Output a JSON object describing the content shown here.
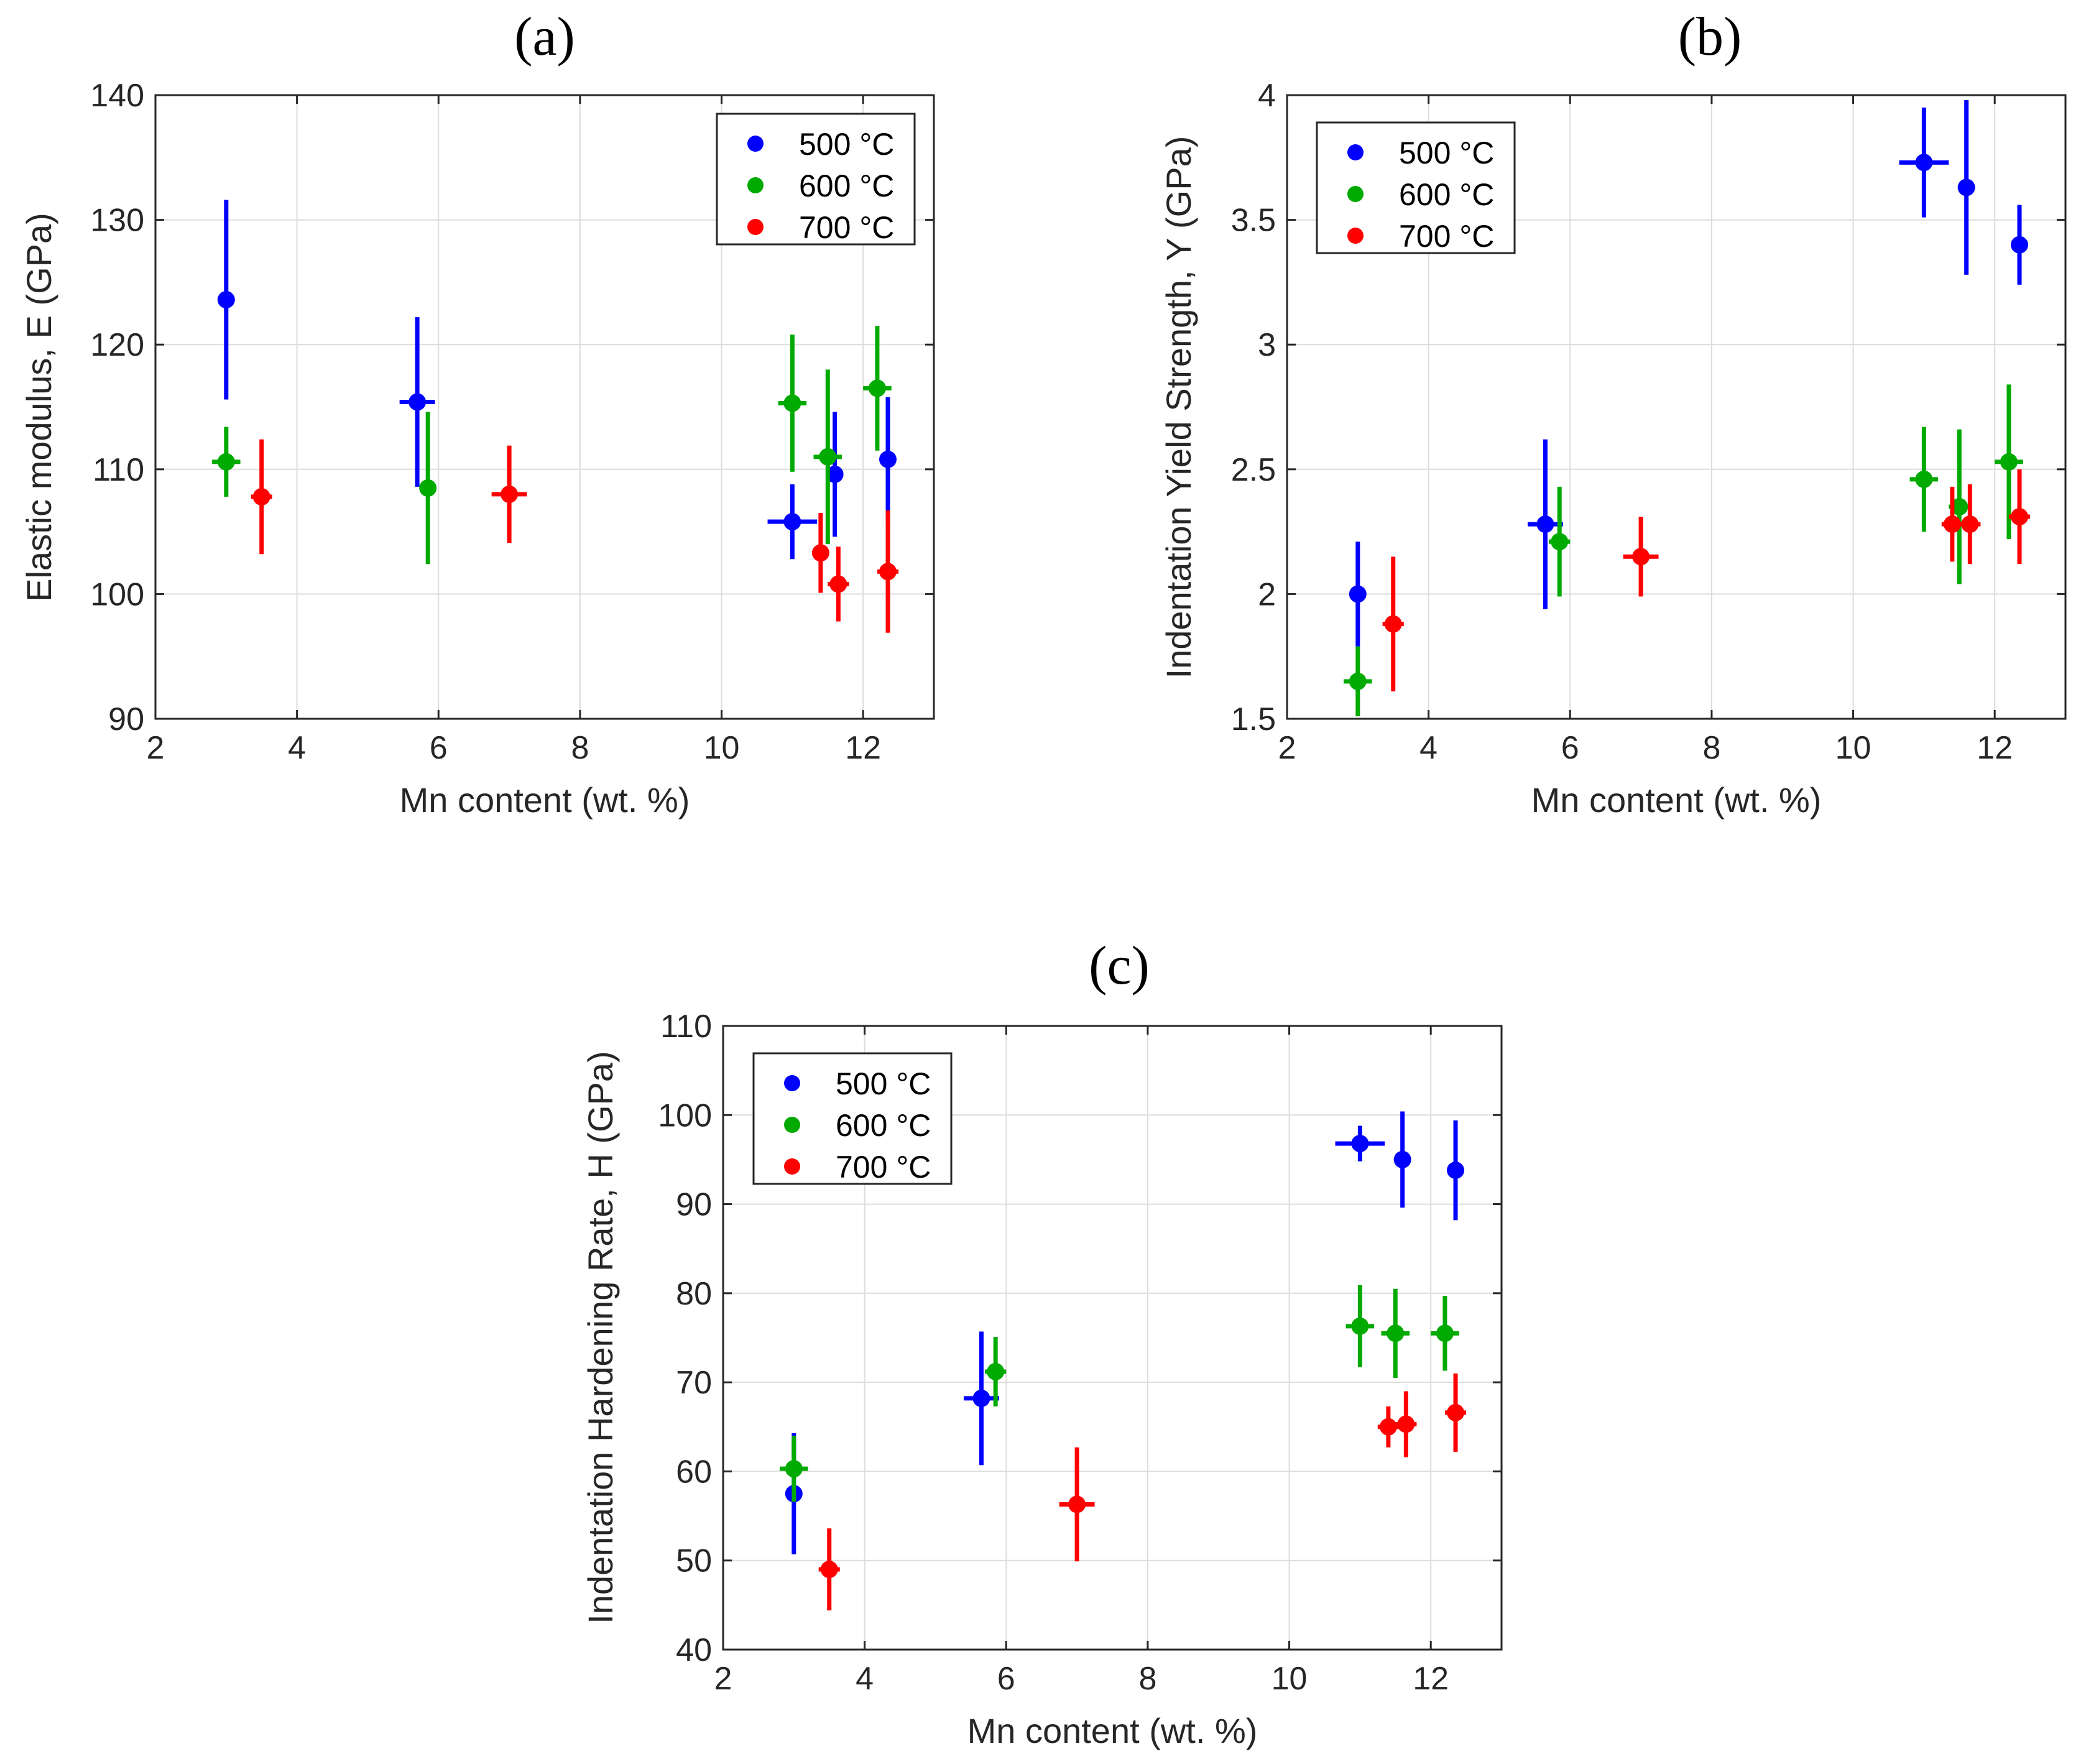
{
  "chart_data": [
    {
      "type": "scatter",
      "panel_label": "(a)",
      "xlabel": "Mn content (wt. %)",
      "ylabel": "Elastic modulus, E (GPa)",
      "xlim": [
        2,
        13
      ],
      "ylim": [
        90,
        140
      ],
      "xticks": [
        2,
        4,
        6,
        8,
        10,
        12
      ],
      "yticks": [
        90,
        100,
        110,
        120,
        130,
        140
      ],
      "grid": true,
      "legend_position": "top-right",
      "series": [
        {
          "name": "500 °C",
          "color": "#0000ff",
          "points": [
            {
              "x": 3.0,
              "y": 123.6,
              "xerr": 0.0,
              "yerr": 8.0
            },
            {
              "x": 5.7,
              "y": 115.4,
              "xerr": 0.25,
              "yerr": 6.8
            },
            {
              "x": 11.0,
              "y": 105.8,
              "xerr": 0.35,
              "yerr": 3.0
            },
            {
              "x": 11.6,
              "y": 109.6,
              "xerr": 0.0,
              "yerr": 5.0
            },
            {
              "x": 12.35,
              "y": 110.8,
              "xerr": 0.0,
              "yerr": 5.0
            }
          ]
        },
        {
          "name": "600 °C",
          "color": "#00aa00",
          "points": [
            {
              "x": 3.0,
              "y": 110.6,
              "xerr": 0.2,
              "yerr": 2.8
            },
            {
              "x": 5.85,
              "y": 108.5,
              "xerr": 0.12,
              "yerr": 6.1
            },
            {
              "x": 11.0,
              "y": 115.3,
              "xerr": 0.2,
              "yerr": 5.5
            },
            {
              "x": 11.5,
              "y": 111.0,
              "xerr": 0.2,
              "yerr": 7.0
            },
            {
              "x": 12.2,
              "y": 116.5,
              "xerr": 0.2,
              "yerr": 5.0
            }
          ]
        },
        {
          "name": "700 °C",
          "color": "#ff0000",
          "points": [
            {
              "x": 3.5,
              "y": 107.8,
              "xerr": 0.15,
              "yerr": 4.6
            },
            {
              "x": 7.0,
              "y": 108.0,
              "xerr": 0.25,
              "yerr": 3.9
            },
            {
              "x": 11.4,
              "y": 103.3,
              "xerr": 0.12,
              "yerr": 3.2
            },
            {
              "x": 11.65,
              "y": 100.8,
              "xerr": 0.15,
              "yerr": 3.0
            },
            {
              "x": 12.35,
              "y": 101.8,
              "xerr": 0.15,
              "yerr": 4.9
            }
          ]
        }
      ]
    },
    {
      "type": "scatter",
      "panel_label": "(b)",
      "xlabel": "Mn content (wt. %)",
      "ylabel": "Indentation Yield Strength, Y (GPa)",
      "xlim": [
        2,
        13
      ],
      "ylim": [
        1.5,
        4
      ],
      "xticks": [
        2,
        4,
        6,
        8,
        10,
        12
      ],
      "yticks": [
        1.5,
        2,
        2.5,
        3,
        3.5,
        4
      ],
      "grid": true,
      "legend_position": "top-left",
      "series": [
        {
          "name": "500 °C",
          "color": "#0000ff",
          "points": [
            {
              "x": 3.0,
              "y": 2.0,
              "xerr": 0.0,
              "yerr": 0.21
            },
            {
              "x": 5.65,
              "y": 2.28,
              "xerr": 0.25,
              "yerr": 0.34
            },
            {
              "x": 11.0,
              "y": 3.73,
              "xerr": 0.35,
              "yerr": 0.22
            },
            {
              "x": 11.6,
              "y": 3.63,
              "xerr": 0.0,
              "yerr": 0.35
            },
            {
              "x": 12.35,
              "y": 3.4,
              "xerr": 0.0,
              "yerr": 0.16
            }
          ]
        },
        {
          "name": "600 °C",
          "color": "#00aa00",
          "points": [
            {
              "x": 3.0,
              "y": 1.65,
              "xerr": 0.2,
              "yerr": 0.14
            },
            {
              "x": 5.85,
              "y": 2.21,
              "xerr": 0.15,
              "yerr": 0.22
            },
            {
              "x": 11.0,
              "y": 2.46,
              "xerr": 0.2,
              "yerr": 0.21
            },
            {
              "x": 11.5,
              "y": 2.35,
              "xerr": 0.15,
              "yerr": 0.31
            },
            {
              "x": 12.2,
              "y": 2.53,
              "xerr": 0.2,
              "yerr": 0.31
            }
          ]
        },
        {
          "name": "700 °C",
          "color": "#ff0000",
          "points": [
            {
              "x": 3.5,
              "y": 1.88,
              "xerr": 0.15,
              "yerr": 0.27
            },
            {
              "x": 7.0,
              "y": 2.15,
              "xerr": 0.25,
              "yerr": 0.16
            },
            {
              "x": 11.4,
              "y": 2.28,
              "xerr": 0.15,
              "yerr": 0.15
            },
            {
              "x": 11.65,
              "y": 2.28,
              "xerr": 0.15,
              "yerr": 0.16
            },
            {
              "x": 12.35,
              "y": 2.31,
              "xerr": 0.15,
              "yerr": 0.19
            }
          ]
        }
      ]
    },
    {
      "type": "scatter",
      "panel_label": "(c)",
      "xlabel": "Mn content (wt. %)",
      "ylabel": "Indentation Hardening Rate, H (GPa)",
      "xlim": [
        2,
        13
      ],
      "ylim": [
        40,
        110
      ],
      "xticks": [
        2,
        4,
        6,
        8,
        10,
        12
      ],
      "yticks": [
        40,
        50,
        60,
        70,
        80,
        90,
        100,
        110
      ],
      "grid": true,
      "legend_position": "top-left",
      "series": [
        {
          "name": "500 °C",
          "color": "#0000ff",
          "points": [
            {
              "x": 3.0,
              "y": 57.5,
              "xerr": 0.0,
              "yerr": 6.8
            },
            {
              "x": 5.65,
              "y": 68.2,
              "xerr": 0.25,
              "yerr": 7.5
            },
            {
              "x": 11.0,
              "y": 96.8,
              "xerr": 0.35,
              "yerr": 2.0
            },
            {
              "x": 11.6,
              "y": 95.0,
              "xerr": 0.0,
              "yerr": 5.4
            },
            {
              "x": 12.35,
              "y": 93.8,
              "xerr": 0.0,
              "yerr": 5.6
            }
          ]
        },
        {
          "name": "600 °C",
          "color": "#00aa00",
          "points": [
            {
              "x": 3.0,
              "y": 60.3,
              "xerr": 0.2,
              "yerr": 3.7
            },
            {
              "x": 5.85,
              "y": 71.2,
              "xerr": 0.15,
              "yerr": 3.9
            },
            {
              "x": 11.0,
              "y": 76.3,
              "xerr": 0.2,
              "yerr": 4.6
            },
            {
              "x": 11.5,
              "y": 75.5,
              "xerr": 0.2,
              "yerr": 5.0
            },
            {
              "x": 12.2,
              "y": 75.5,
              "xerr": 0.2,
              "yerr": 4.2
            }
          ]
        },
        {
          "name": "700 °C",
          "color": "#ff0000",
          "points": [
            {
              "x": 3.5,
              "y": 49.0,
              "xerr": 0.15,
              "yerr": 4.6
            },
            {
              "x": 7.0,
              "y": 56.3,
              "xerr": 0.25,
              "yerr": 6.4
            },
            {
              "x": 11.4,
              "y": 65.0,
              "xerr": 0.15,
              "yerr": 2.3
            },
            {
              "x": 11.65,
              "y": 65.3,
              "xerr": 0.15,
              "yerr": 3.7
            },
            {
              "x": 12.35,
              "y": 66.6,
              "xerr": 0.15,
              "yerr": 4.4
            }
          ]
        }
      ]
    }
  ]
}
